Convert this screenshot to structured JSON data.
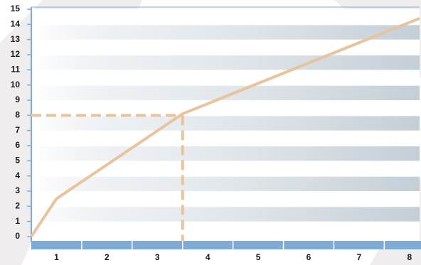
{
  "chart_data": {
    "type": "line",
    "x": [
      0.5,
      1.0,
      3.5,
      8.2
    ],
    "series": [
      {
        "color": "#e8c39b",
        "values": [
          0,
          2.5,
          8.1,
          14.4
        ]
      }
    ],
    "ref_line": {
      "x": 3.5,
      "y": 8
    },
    "xlim": [
      0.5,
      8.2
    ],
    "xticks": [
      1,
      2,
      3,
      4,
      5,
      6,
      7,
      8
    ],
    "ylim": [
      0,
      15
    ],
    "yticks": [
      0,
      1,
      2,
      3,
      4,
      5,
      6,
      7,
      8,
      9,
      10,
      11,
      12,
      13,
      14,
      15
    ],
    "axis_color": "#7eabd6"
  }
}
